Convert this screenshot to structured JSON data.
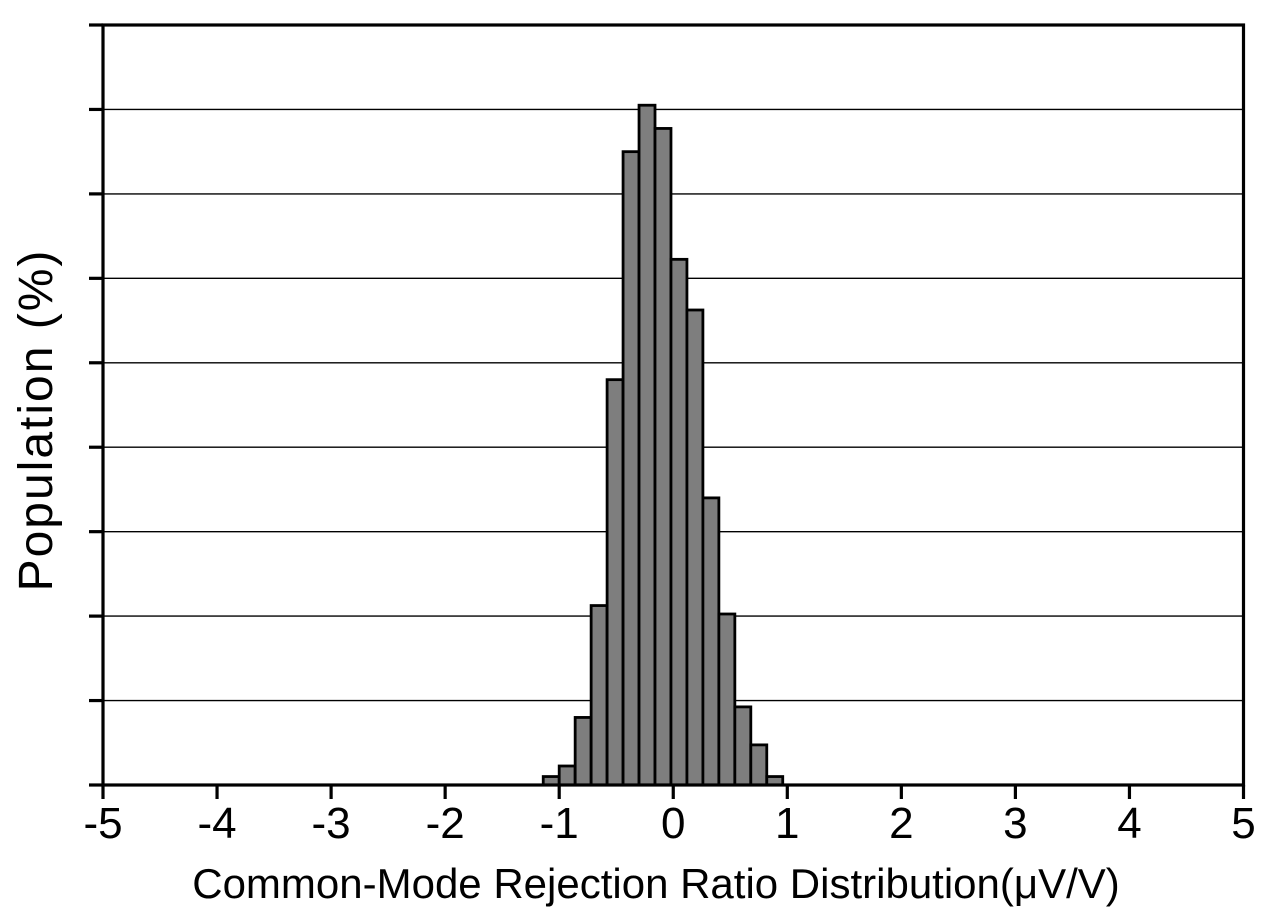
{
  "chart_data": {
    "type": "bar",
    "subtype": "histogram",
    "title": "",
    "xlabel": "Common-Mode Rejection Ratio Distribution(μV/V)",
    "ylabel": "Population (%)",
    "xlim": [
      -5,
      5
    ],
    "x_tick_labels": [
      "-5",
      "-4",
      "-3",
      "-2",
      "-1",
      "0",
      "1",
      "2",
      "3",
      "4",
      "5"
    ],
    "y_axis": {
      "tick_labels_shown": false,
      "divisions": 9,
      "ylim_pct_estimated": [
        0,
        18
      ],
      "pct_per_division_estimated": 2
    },
    "grid": "horizontal-only",
    "legend": "none",
    "histogram": {
      "bin_start": -1.14,
      "bin_width": 0.14,
      "bin_centers": [
        -1.07,
        -0.93,
        -0.79,
        -0.65,
        -0.51,
        -0.37,
        -0.23,
        -0.09,
        0.05,
        0.19,
        0.33,
        0.47,
        0.61,
        0.75,
        0.89
      ],
      "population_pct": [
        0.2,
        0.45,
        1.6,
        4.25,
        9.6,
        15.0,
        16.1,
        15.55,
        12.45,
        11.25,
        6.8,
        4.05,
        1.85,
        0.95,
        0.2
      ]
    },
    "colors": {
      "bar_fill": "#7e7e7e",
      "bar_edge": "#000000",
      "axis": "#000000",
      "gridline": "#000000",
      "background": "#ffffff"
    }
  }
}
